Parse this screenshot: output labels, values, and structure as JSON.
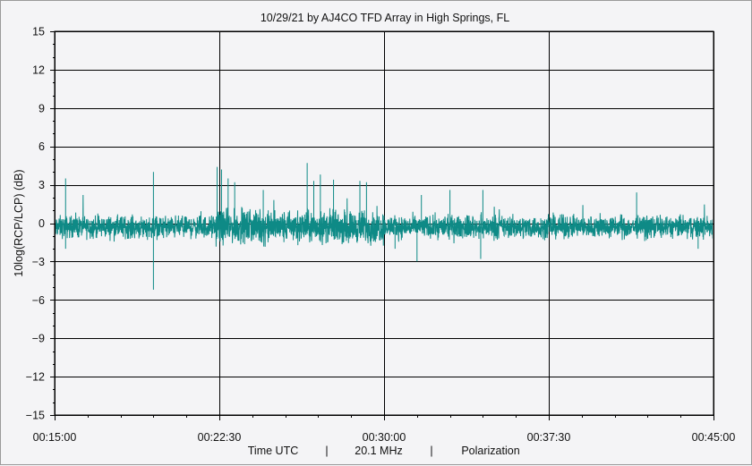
{
  "chart_data": {
    "type": "line",
    "title": "10/29/21  by  AJ4CO TFD Array  in  High Springs, FL",
    "ylabel": "10log(RCP/LCP)  (dB)",
    "xlabel_parts": [
      "Time UTC",
      "|",
      "20.1 MHz",
      "|",
      "Polarization"
    ],
    "ylim": [
      -15,
      15
    ],
    "yticks": [
      15,
      12,
      9,
      6,
      3,
      0,
      -3,
      -6,
      -9,
      -12,
      -15
    ],
    "ytick_labels": [
      "15",
      "12",
      "9",
      "6",
      "3",
      "0",
      "−3",
      "−6",
      "−9",
      "−12",
      "−15"
    ],
    "xlim_minutes": [
      15,
      45
    ],
    "xtick_minutes": [
      15,
      22.5,
      30,
      37.5,
      45
    ],
    "xtick_labels": [
      "00:15:00",
      "00:22:30",
      "00:30:00",
      "00:37:30",
      "00:45:00"
    ],
    "grid": true,
    "series": [
      {
        "color": "#0e8a86",
        "baseline_db": -0.3,
        "noise_db": 0.7,
        "spikes": [
          {
            "t_min": 15.5,
            "db": 3.5
          },
          {
            "t_min": 15.5,
            "db": -2.0
          },
          {
            "t_min": 19.5,
            "db": 4.0
          },
          {
            "t_min": 19.5,
            "db": -5.2
          },
          {
            "t_min": 22.4,
            "db": 4.4
          },
          {
            "t_min": 22.6,
            "db": 4.2
          },
          {
            "t_min": 22.9,
            "db": 3.5
          },
          {
            "t_min": 23.2,
            "db": 3.2
          },
          {
            "t_min": 24.5,
            "db": 2.6
          },
          {
            "t_min": 26.8,
            "db": 3.3
          },
          {
            "t_min": 26.5,
            "db": 4.7
          },
          {
            "t_min": 27.1,
            "db": 3.8
          },
          {
            "t_min": 27.7,
            "db": 3.4
          },
          {
            "t_min": 28.9,
            "db": 3.3
          },
          {
            "t_min": 29.2,
            "db": 3.2
          },
          {
            "t_min": 30.5,
            "db": -2.0
          },
          {
            "t_min": 31.5,
            "db": -3.0
          },
          {
            "t_min": 31.7,
            "db": 2.2
          },
          {
            "t_min": 33.0,
            "db": 2.6
          },
          {
            "t_min": 34.5,
            "db": 2.6
          },
          {
            "t_min": 34.4,
            "db": -2.8
          },
          {
            "t_min": 41.5,
            "db": 2.4
          },
          {
            "t_min": 44.3,
            "db": -2.0
          }
        ]
      }
    ]
  }
}
